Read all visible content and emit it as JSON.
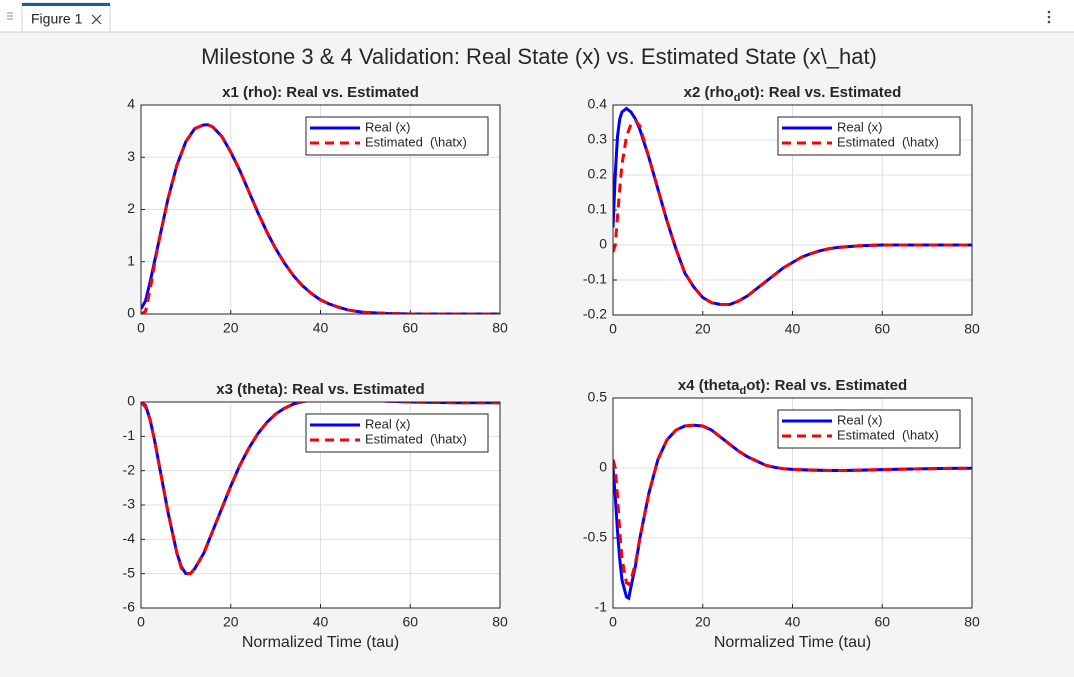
{
  "figure": {
    "tab": "Figure 1",
    "title": "Milestone 3 & 4 Validation: Real State (x) vs. Estimated State (x\\_hat)"
  },
  "chart_data": [
    {
      "type": "line",
      "title": [
        "x1 (rho): Real vs. Estimated"
      ],
      "x": [
        0,
        1,
        2,
        3,
        4,
        6,
        8,
        10,
        12,
        14,
        15,
        16,
        18,
        20,
        22,
        24,
        26,
        28,
        30,
        32,
        34,
        36,
        38,
        40,
        42,
        44,
        46,
        48,
        50,
        55,
        60,
        65,
        70,
        75,
        80
      ],
      "series": [
        {
          "name": "Real (x)",
          "color": "#0000ff",
          "linestyle": "solid",
          "values": [
            0.1,
            0.25,
            0.6,
            1.0,
            1.4,
            2.2,
            2.85,
            3.3,
            3.55,
            3.62,
            3.62,
            3.58,
            3.4,
            3.1,
            2.75,
            2.35,
            1.95,
            1.58,
            1.25,
            0.97,
            0.73,
            0.54,
            0.39,
            0.27,
            0.19,
            0.13,
            0.08,
            0.05,
            0.03,
            0.01,
            0,
            0,
            0,
            0,
            0
          ]
        },
        {
          "name": "Estimated  (\\hatx)",
          "color": "#ff0000",
          "linestyle": "dashed",
          "values": [
            0,
            0.05,
            0.45,
            0.95,
            1.4,
            2.2,
            2.85,
            3.3,
            3.55,
            3.62,
            3.62,
            3.58,
            3.4,
            3.1,
            2.75,
            2.35,
            1.95,
            1.58,
            1.25,
            0.97,
            0.73,
            0.54,
            0.39,
            0.27,
            0.19,
            0.13,
            0.08,
            0.05,
            0.03,
            0.01,
            0,
            0,
            0,
            0,
            0
          ]
        }
      ],
      "xlim": [
        0,
        80
      ],
      "xticks": [
        0,
        20,
        40,
        60,
        80
      ],
      "ylim": [
        0,
        4
      ],
      "yticks": [
        0,
        1,
        2,
        3,
        4
      ],
      "grid": true,
      "legend": "northeast"
    },
    {
      "type": "line",
      "title": [
        "x2  (rho",
        "d",
        "ot):  Real  vs.  Estimated"
      ],
      "x": [
        0,
        0.5,
        1,
        1.5,
        2,
        3,
        4,
        5,
        6,
        8,
        10,
        12,
        14,
        16,
        18,
        20,
        22,
        24,
        26,
        28,
        30,
        32,
        34,
        36,
        38,
        40,
        42,
        44,
        46,
        48,
        50,
        55,
        60,
        65,
        70,
        75,
        80
      ],
      "series": [
        {
          "name": "Real (x)",
          "color": "#0000ff",
          "linestyle": "solid",
          "values": [
            0.05,
            0.2,
            0.31,
            0.36,
            0.38,
            0.39,
            0.38,
            0.36,
            0.33,
            0.25,
            0.16,
            0.07,
            -0.01,
            -0.08,
            -0.12,
            -0.15,
            -0.165,
            -0.17,
            -0.17,
            -0.16,
            -0.145,
            -0.125,
            -0.105,
            -0.085,
            -0.065,
            -0.05,
            -0.035,
            -0.025,
            -0.017,
            -0.011,
            -0.007,
            -0.002,
            0,
            0,
            0,
            0,
            0
          ]
        },
        {
          "name": "Estimated  (\\hatx)",
          "color": "#ff0000",
          "linestyle": "dashed",
          "values": [
            -0.02,
            0,
            0.08,
            0.16,
            0.23,
            0.31,
            0.345,
            0.355,
            0.34,
            0.25,
            0.16,
            0.07,
            -0.01,
            -0.08,
            -0.12,
            -0.15,
            -0.165,
            -0.17,
            -0.17,
            -0.16,
            -0.145,
            -0.125,
            -0.105,
            -0.085,
            -0.065,
            -0.05,
            -0.035,
            -0.025,
            -0.017,
            -0.011,
            -0.007,
            -0.002,
            0,
            0,
            0,
            0,
            0
          ]
        }
      ],
      "xlim": [
        0,
        80
      ],
      "xticks": [
        0,
        20,
        40,
        60,
        80
      ],
      "ylim": [
        -0.2,
        0.4
      ],
      "yticks": [
        -0.2,
        -0.1,
        0,
        0.1,
        0.2,
        0.3,
        0.4
      ],
      "grid": true,
      "legend": "northeast"
    },
    {
      "type": "line",
      "title": [
        "x3 (theta): Real vs. Estimated"
      ],
      "x_label": "Normalized Time (tau)",
      "x": [
        0,
        1,
        2,
        3,
        4,
        6,
        8,
        9,
        10,
        11,
        12,
        14,
        16,
        18,
        20,
        22,
        24,
        26,
        28,
        30,
        32,
        34,
        36,
        38,
        40,
        42,
        44,
        46,
        50,
        55,
        60,
        65,
        70,
        75,
        80
      ],
      "series": [
        {
          "name": "Real (x)",
          "color": "#0000ff",
          "linestyle": "solid",
          "values": [
            0,
            -0.1,
            -0.5,
            -1.1,
            -1.8,
            -3.2,
            -4.4,
            -4.8,
            -5.0,
            -5.0,
            -4.85,
            -4.4,
            -3.75,
            -3.1,
            -2.45,
            -1.85,
            -1.35,
            -0.93,
            -0.6,
            -0.35,
            -0.18,
            -0.06,
            0.01,
            0.05,
            0.07,
            0.08,
            0.08,
            0.07,
            0.05,
            0.02,
            0,
            -0.01,
            -0.02,
            -0.02,
            -0.02
          ]
        },
        {
          "name": "Estimated  (\\hatx)",
          "color": "#ff0000",
          "linestyle": "dashed",
          "values": [
            0,
            -0.15,
            -0.5,
            -1.1,
            -1.8,
            -3.2,
            -4.4,
            -4.85,
            -5.0,
            -5.0,
            -4.85,
            -4.4,
            -3.75,
            -3.1,
            -2.45,
            -1.85,
            -1.35,
            -0.93,
            -0.6,
            -0.35,
            -0.18,
            -0.06,
            0.01,
            0.05,
            0.07,
            0.08,
            0.08,
            0.07,
            0.05,
            0.02,
            0,
            -0.01,
            -0.02,
            -0.02,
            -0.02
          ]
        }
      ],
      "xlim": [
        0,
        80
      ],
      "xticks": [
        0,
        20,
        40,
        60,
        80
      ],
      "ylim": [
        -6,
        0
      ],
      "yticks": [
        -6,
        -5,
        -4,
        -3,
        -2,
        -1,
        0
      ],
      "grid": true,
      "legend": "northeast"
    },
    {
      "type": "line",
      "title": [
        "x4  (theta",
        "d",
        "ot):  Real  vs.  Estimated"
      ],
      "x_label": "Normalized Time (tau)",
      "x": [
        0,
        0.5,
        1,
        1.5,
        2,
        3,
        3.5,
        4,
        5,
        6,
        8,
        10,
        12,
        14,
        16,
        18,
        20,
        22,
        24,
        26,
        28,
        30,
        32,
        34,
        36,
        38,
        40,
        44,
        48,
        52,
        56,
        60,
        65,
        70,
        75,
        80
      ],
      "series": [
        {
          "name": "Real (x)",
          "color": "#0000ff",
          "linestyle": "solid",
          "values": [
            0,
            -0.2,
            -0.45,
            -0.65,
            -0.8,
            -0.92,
            -0.93,
            -0.85,
            -0.7,
            -0.5,
            -0.18,
            0.06,
            0.2,
            0.27,
            0.3,
            0.305,
            0.3,
            0.27,
            0.22,
            0.17,
            0.12,
            0.08,
            0.05,
            0.02,
            0.005,
            -0.005,
            -0.01,
            -0.015,
            -0.018,
            -0.018,
            -0.015,
            -0.012,
            -0.008,
            -0.005,
            -0.003,
            -0.002
          ]
        },
        {
          "name": "Estimated  (\\hatx)",
          "color": "#ff0000",
          "linestyle": "dashed",
          "values": [
            0.06,
            0,
            -0.2,
            -0.45,
            -0.65,
            -0.82,
            -0.83,
            -0.8,
            -0.68,
            -0.5,
            -0.18,
            0.06,
            0.2,
            0.27,
            0.3,
            0.305,
            0.3,
            0.27,
            0.22,
            0.17,
            0.12,
            0.08,
            0.05,
            0.02,
            0.005,
            -0.005,
            -0.01,
            -0.015,
            -0.018,
            -0.018,
            -0.015,
            -0.012,
            -0.008,
            -0.005,
            -0.003,
            -0.002
          ]
        }
      ],
      "xlim": [
        0,
        80
      ],
      "xticks": [
        0,
        20,
        40,
        60,
        80
      ],
      "ylim": [
        -1,
        0.5
      ],
      "yticks": [
        -1,
        -0.5,
        0,
        0.5
      ],
      "grid": true,
      "legend": "northeast"
    }
  ]
}
